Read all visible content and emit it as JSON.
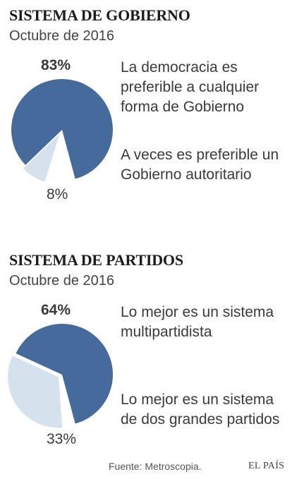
{
  "colors": {
    "main": "#456b9d",
    "minor": "#d6e1ee",
    "background": "#ffffff"
  },
  "chart_data": [
    {
      "type": "pie",
      "title": "SISTEMA DE GOBIERNO",
      "subtitle": "Octubre de 2016",
      "slices": [
        {
          "label": "La democracia es preferible a cualquier forma de Gobierno",
          "value": 83,
          "display": "83%"
        },
        {
          "label": "A veces es preferible un Gobierno autoritario",
          "value": 8,
          "display": "8%"
        }
      ]
    },
    {
      "type": "pie",
      "title": "SISTEMA DE PARTIDOS",
      "subtitle": "Octubre de 2016",
      "slices": [
        {
          "label": "Lo mejor es un sistema multipartidista",
          "value": 64,
          "display": "64%"
        },
        {
          "label": "Lo mejor es un sistema de dos grandes partidos",
          "value": 33,
          "display": "33%"
        }
      ]
    }
  ],
  "footer": {
    "source": "Fuente: Metroscopia.",
    "brand": "EL PAÍS"
  }
}
